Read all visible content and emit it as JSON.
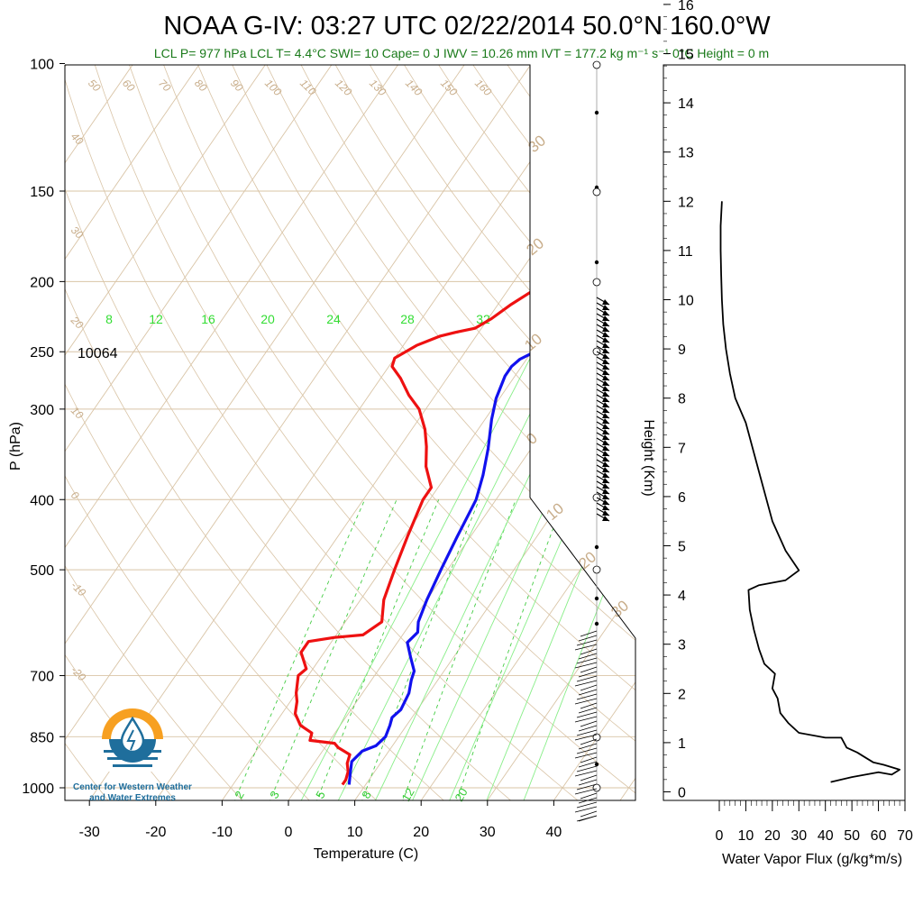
{
  "title": "NOAA G-IV: 03:27 UTC 02/22/2014  50.0°N 160.0°W",
  "subtitle": "LCL P= 977 hPa  LCL T= 4.4°C  SWI= 10  Cape= 0 J  IWV = 10.26 mm  IVT = 177.2 kg m⁻¹ s⁻¹  0°C Height = 0 m",
  "colors": {
    "temperature": "#ee1111",
    "dewpoint": "#1111ee",
    "isotherm": "#d9c4a6",
    "mixing_ratio": "#44cc44",
    "isohume_solid": "#88ee88",
    "flux": "#000000"
  },
  "logo": {
    "icon": "water-drop-sun-logo-icon",
    "line1": "Center for Western Weather",
    "line2": "and Water Extremes"
  },
  "height_marker": "10064",
  "chart_data": [
    {
      "type": "line",
      "name": "skew-t",
      "xlabel": "Temperature (C)",
      "ylabel": "P (hPa)",
      "x_ticks": [
        -30,
        -20,
        -10,
        0,
        10,
        20,
        30,
        40
      ],
      "p_ticks": [
        100,
        150,
        200,
        250,
        300,
        400,
        500,
        700,
        850,
        1000
      ],
      "p_range": [
        100,
        1050
      ],
      "t_range": [
        -34,
        41
      ],
      "isotherm_labels": [
        50,
        60,
        70,
        80,
        90,
        100,
        110,
        120,
        130,
        140,
        150,
        160,
        40,
        30,
        20,
        10,
        0,
        -10,
        -20
      ],
      "skew_labels": [
        30,
        20,
        10,
        0,
        10,
        20,
        30
      ],
      "upper_green_labels": [
        8,
        12,
        16,
        20,
        24,
        28,
        32
      ],
      "mixing_labels": [
        2,
        3,
        5,
        8,
        12,
        20
      ],
      "series": [
        {
          "name": "temperature",
          "points": [
            [
              -14,
              193
            ],
            [
              -16,
              205
            ],
            [
              -18,
              215
            ],
            [
              -19.5,
              225
            ],
            [
              -21,
              232
            ],
            [
              -23.5,
              235
            ],
            [
              -25.5,
              238
            ],
            [
              -28,
              245
            ],
            [
              -30,
              255
            ],
            [
              -29.5,
              262
            ],
            [
              -27,
              272
            ],
            [
              -24,
              287
            ],
            [
              -21,
              300
            ],
            [
              -18,
              320
            ],
            [
              -16,
              338
            ],
            [
              -14,
              360
            ],
            [
              -11,
              385
            ],
            [
              -11,
              400
            ],
            [
              -9.5,
              450
            ],
            [
              -8,
              500
            ],
            [
              -6.5,
              550
            ],
            [
              -4.5,
              590
            ],
            [
              -6,
              615
            ],
            [
              -10,
              620
            ],
            [
              -13.5,
              628
            ],
            [
              -13.5,
              650
            ],
            [
              -11,
              685
            ],
            [
              -11.5,
              700
            ],
            [
              -10,
              740
            ],
            [
              -9,
              760
            ],
            [
              -8,
              790
            ],
            [
              -6,
              820
            ],
            [
              -3.5,
              840
            ],
            [
              -3,
              860
            ],
            [
              1,
              868
            ],
            [
              2,
              880
            ],
            [
              4.5,
              900
            ],
            [
              5,
              925
            ],
            [
              6,
              950
            ],
            [
              6.5,
              975
            ],
            [
              6.5,
              990
            ]
          ]
        },
        {
          "name": "dewpoint",
          "points": [
            [
              5.5,
              193
            ],
            [
              4.5,
              200
            ],
            [
              2.5,
              210
            ],
            [
              0.5,
              220
            ],
            [
              -0.5,
              227
            ],
            [
              -3.5,
              232
            ],
            [
              -5,
              235
            ],
            [
              -7,
              241
            ],
            [
              -9.5,
              250
            ],
            [
              -11,
              256
            ],
            [
              -11.5,
              262
            ],
            [
              -11.5,
              270
            ],
            [
              -10.5,
              290
            ],
            [
              -9,
              310
            ],
            [
              -6.5,
              340
            ],
            [
              -4.5,
              370
            ],
            [
              -3,
              400
            ],
            [
              -2,
              450
            ],
            [
              -1,
              500
            ],
            [
              0,
              550
            ],
            [
              1,
              590
            ],
            [
              2,
              610
            ],
            [
              1.5,
              630
            ],
            [
              3.5,
              660
            ],
            [
              5.5,
              690
            ],
            [
              6,
              710
            ],
            [
              7,
              740
            ],
            [
              7.5,
              780
            ],
            [
              7,
              800
            ],
            [
              7.5,
              820
            ],
            [
              8,
              850
            ],
            [
              7.5,
              875
            ],
            [
              6,
              890
            ],
            [
              5.5,
              920
            ],
            [
              6.5,
              955
            ],
            [
              7.5,
              990
            ]
          ]
        }
      ]
    },
    {
      "type": "line",
      "name": "water-vapor-flux",
      "xlabel": "Water Vapor Flux (g/kg*m/s)",
      "ylabel": "Height (Km)",
      "x_ticks": [
        0,
        10,
        20,
        30,
        40,
        50,
        60,
        70
      ],
      "y_ticks": [
        0,
        1,
        2,
        3,
        4,
        5,
        6,
        7,
        8,
        9,
        10,
        11,
        12,
        13,
        14,
        15,
        16
      ],
      "xlim": [
        0,
        70
      ],
      "ylim": [
        -0.3,
        16.3
      ],
      "points": [
        [
          1,
          12.0
        ],
        [
          0.5,
          11.5
        ],
        [
          0.5,
          11.0
        ],
        [
          0.7,
          10.5
        ],
        [
          1,
          10.0
        ],
        [
          1.5,
          9.5
        ],
        [
          2.5,
          9.0
        ],
        [
          4,
          8.5
        ],
        [
          6,
          8.0
        ],
        [
          10,
          7.5
        ],
        [
          15,
          6.5
        ],
        [
          20,
          5.5
        ],
        [
          25,
          4.9
        ],
        [
          30,
          4.5
        ],
        [
          25,
          4.3
        ],
        [
          15,
          4.2
        ],
        [
          11,
          4.1
        ],
        [
          11.5,
          3.7
        ],
        [
          13,
          3.3
        ],
        [
          15,
          2.9
        ],
        [
          17,
          2.6
        ],
        [
          21,
          2.4
        ],
        [
          20,
          2.1
        ],
        [
          22,
          1.9
        ],
        [
          23,
          1.6
        ],
        [
          26,
          1.4
        ],
        [
          30,
          1.2
        ],
        [
          40,
          1.1
        ],
        [
          46,
          1.1
        ],
        [
          48,
          0.9
        ],
        [
          52,
          0.8
        ],
        [
          55,
          0.7
        ],
        [
          58,
          0.6
        ],
        [
          62,
          0.55
        ],
        [
          68,
          0.45
        ],
        [
          65,
          0.35
        ],
        [
          60,
          0.4
        ],
        [
          50,
          0.3
        ],
        [
          42,
          0.2
        ]
      ]
    }
  ]
}
